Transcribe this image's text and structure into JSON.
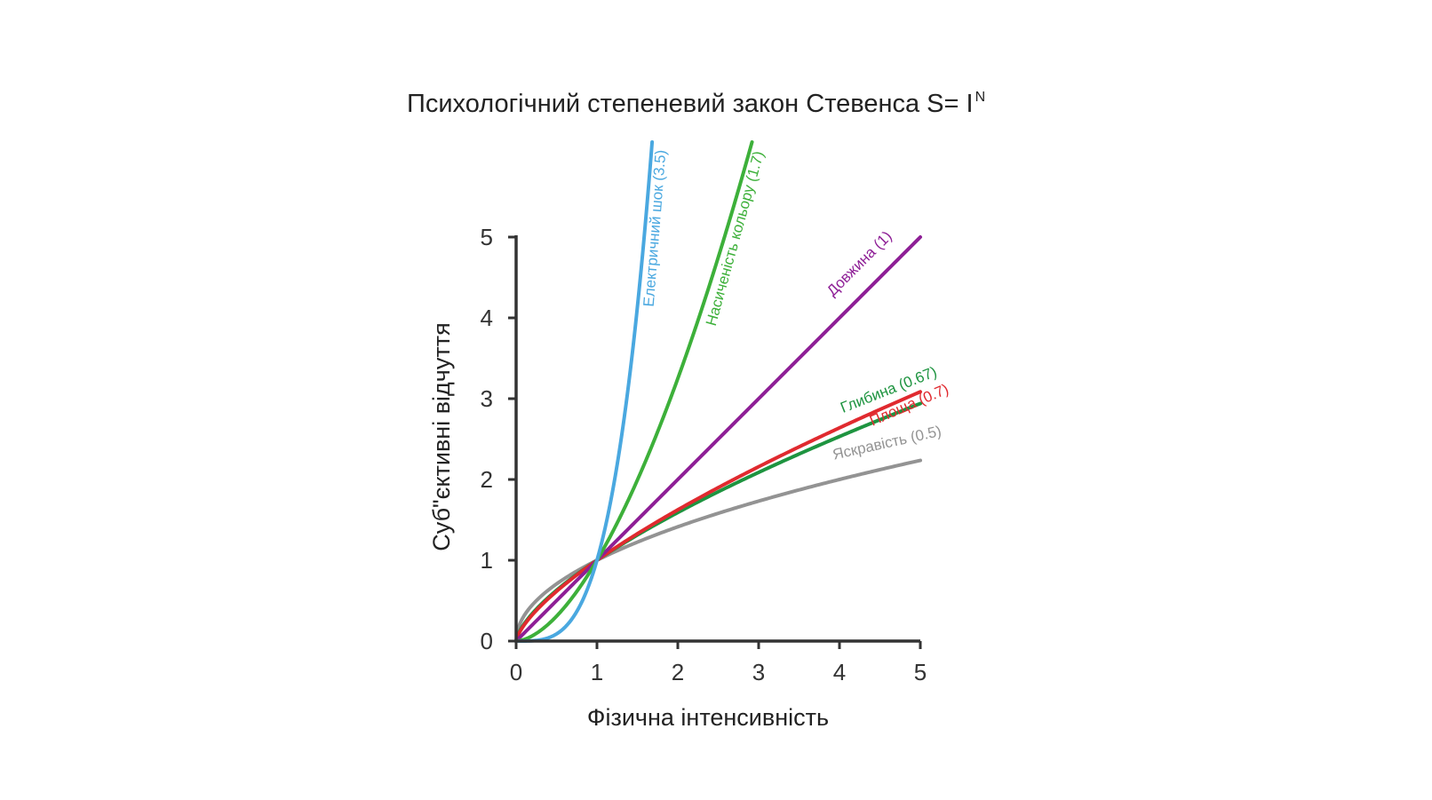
{
  "chart_data": {
    "type": "line",
    "title": "Психологічний степеневий закон  Стевенса S= I",
    "title_superscript": "N",
    "xlabel": "Фізична інтенсивність",
    "ylabel": "Суб\"єктивні відчуття",
    "xlim": [
      0,
      5
    ],
    "ylim": [
      0,
      5
    ],
    "x_ticks": [
      "0",
      "1",
      "2",
      "3",
      "4",
      "5"
    ],
    "y_ticks": [
      "0",
      "1",
      "2",
      "3",
      "4",
      "5"
    ],
    "grid": false,
    "series": [
      {
        "name": "Електричний шок (3.5)",
        "exponent": 3.5,
        "color": "#4aa8e0"
      },
      {
        "name": "Насиченість кольору (1.7)",
        "exponent": 1.7,
        "color": "#3db03a"
      },
      {
        "name": "Довжина (1)",
        "exponent": 1.0,
        "color": "#8e1f96"
      },
      {
        "name": "Площа (0.7)",
        "exponent": 0.7,
        "color": "#e02a2f"
      },
      {
        "name": "Глибина (0.67)",
        "exponent": 0.67,
        "color": "#1e9440"
      },
      {
        "name": "Яскравість (0.5)",
        "exponent": 0.5,
        "color": "#939393"
      }
    ]
  }
}
